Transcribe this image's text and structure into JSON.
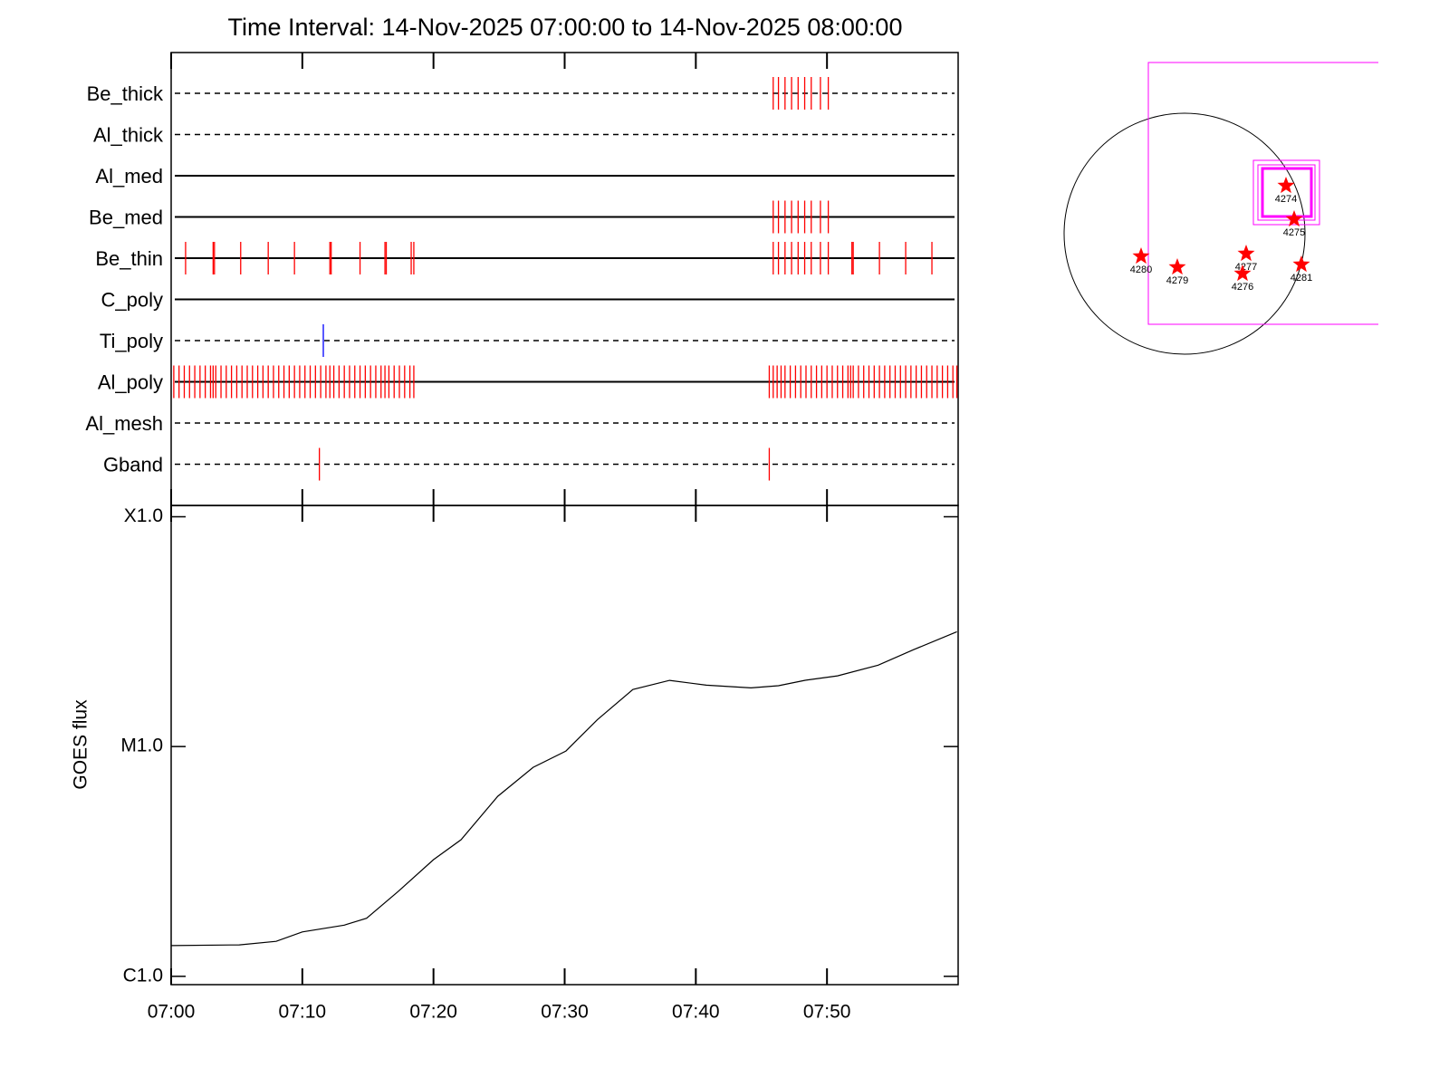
{
  "chart_data": [
    {
      "type": "event",
      "title": "Time Interval: 14-Nov-2025 07:00:00 to 14-Nov-2025 08:00:00",
      "xlim": [
        0,
        60
      ],
      "series": [
        {
          "name": "Be_thick",
          "style": "dashed",
          "color": "#ff0000",
          "values": [
            45.9,
            46.3,
            46.8,
            47.3,
            47.8,
            48.3,
            48.8,
            49.5,
            50.1
          ]
        },
        {
          "name": "Al_thick",
          "style": "dashed",
          "color": "#ff0000",
          "values": []
        },
        {
          "name": "Al_med",
          "style": "solid",
          "color": "#ff0000",
          "values": []
        },
        {
          "name": "Be_med",
          "style": "solid",
          "color": "#ff0000",
          "values": [
            45.9,
            46.3,
            46.8,
            47.3,
            47.8,
            48.3,
            48.8,
            49.5,
            50.1
          ]
        },
        {
          "name": "Be_thin",
          "style": "solid",
          "color": "#ff0000",
          "values": [
            1.1,
            3.2,
            3.3,
            5.3,
            7.4,
            9.4,
            12.1,
            12.2,
            14.4,
            16.3,
            16.4,
            18.3,
            18.5,
            45.9,
            46.3,
            46.8,
            47.3,
            47.8,
            48.3,
            48.8,
            49.5,
            50.1,
            51.9,
            52.0,
            54.0,
            56.0,
            58.0
          ]
        },
        {
          "name": "C_poly",
          "style": "solid",
          "color": "#ff0000",
          "values": []
        },
        {
          "name": "Ti_poly",
          "style": "dashed",
          "color": "#0000ff",
          "values": [
            11.6
          ]
        },
        {
          "name": "Al_poly",
          "style": "solid",
          "color": "#ff0000",
          "values": [
            0.2,
            0.6,
            1.0,
            1.4,
            1.8,
            2.2,
            2.6,
            3.0,
            3.2,
            3.4,
            3.8,
            4.2,
            4.6,
            5.0,
            5.4,
            5.8,
            6.2,
            6.6,
            7.0,
            7.4,
            7.8,
            8.2,
            8.6,
            9.0,
            9.4,
            9.8,
            10.2,
            10.6,
            11.0,
            11.4,
            11.8,
            12.1,
            12.4,
            12.8,
            13.2,
            13.6,
            14.0,
            14.4,
            14.8,
            15.2,
            15.6,
            16.0,
            16.3,
            16.6,
            17.0,
            17.4,
            17.8,
            18.2,
            18.5,
            45.6,
            45.9,
            46.2,
            46.5,
            46.8,
            47.2,
            47.6,
            48.0,
            48.4,
            48.8,
            49.2,
            49.6,
            50.0,
            50.4,
            50.8,
            51.2,
            51.6,
            51.8,
            52.0,
            52.4,
            52.8,
            53.2,
            53.6,
            54.0,
            54.4,
            54.8,
            55.2,
            55.6,
            56.0,
            56.4,
            56.8,
            57.2,
            57.6,
            58.0,
            58.4,
            58.8,
            59.2,
            59.6,
            59.9
          ]
        },
        {
          "name": "Al_mesh",
          "style": "dashed",
          "color": "#ff0000",
          "values": []
        },
        {
          "name": "Gband",
          "style": "dashed",
          "color": "#ff0000",
          "values": [
            11.3,
            45.6
          ]
        }
      ]
    },
    {
      "type": "line",
      "ylabel": "GOES flux",
      "log_scale": true,
      "color": "#000000",
      "xlim": [
        0,
        60
      ],
      "xticks": [
        {
          "value": 0,
          "label": "07:00"
        },
        {
          "value": 10,
          "label": "07:10"
        },
        {
          "value": 20,
          "label": "07:20"
        },
        {
          "value": 30,
          "label": "07:30"
        },
        {
          "value": 40,
          "label": "07:40"
        },
        {
          "value": 50,
          "label": "07:50"
        }
      ],
      "ylim": [
        9.2e-07,
        0.000112
      ],
      "yticks": [
        {
          "value": 1e-06,
          "label": "C1.0"
        },
        {
          "value": 1e-05,
          "label": "M1.0"
        },
        {
          "value": 0.0001,
          "label": "X1.0"
        }
      ],
      "x": [
        0,
        5.2,
        8,
        10,
        13.2,
        14.9,
        17.3,
        20,
        22.1,
        24.9,
        27.6,
        30.1,
        32.5,
        35.2,
        38,
        40.8,
        44.2,
        46.3,
        48.3,
        50.8,
        53.9,
        56.6,
        59.9
      ],
      "values": [
        1.36e-06,
        1.37e-06,
        1.42e-06,
        1.56e-06,
        1.67e-06,
        1.79e-06,
        2.34e-06,
        3.22e-06,
        3.93e-06,
        6.07e-06,
        8.12e-06,
        9.56e-06,
        1.31e-05,
        1.77e-05,
        1.94e-05,
        1.85e-05,
        1.8e-05,
        1.84e-05,
        1.94e-05,
        2.03e-05,
        2.26e-05,
        2.64e-05,
        3.16e-05
      ]
    }
  ],
  "sun_map": {
    "regions": [
      "4274",
      "4275",
      "4277",
      "4276",
      "4281",
      "4280",
      "4279"
    ]
  }
}
